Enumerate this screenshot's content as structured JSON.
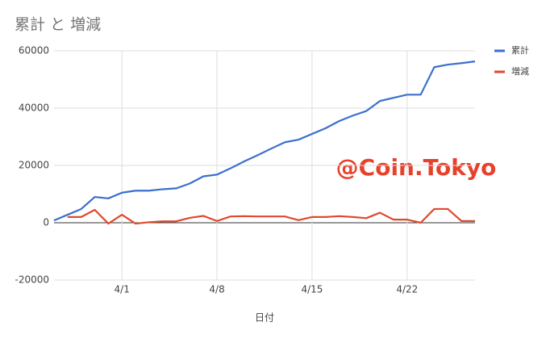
{
  "chart_data": {
    "type": "line",
    "title": "累計 と 増減",
    "x_label": "日付",
    "annotation": "@Coin.Tokyo",
    "categories": [
      null,
      null,
      null,
      null,
      null,
      "4/1",
      null,
      null,
      null,
      null,
      null,
      null,
      "4/8",
      null,
      null,
      null,
      null,
      null,
      null,
      "4/15",
      null,
      null,
      null,
      null,
      null,
      null,
      "4/22",
      null,
      null,
      null,
      null,
      null
    ],
    "series": [
      {
        "name": "累計",
        "color": "#3b6fce",
        "values": [
          800,
          2800,
          4800,
          9000,
          8500,
          10500,
          11200,
          11200,
          11700,
          12000,
          13700,
          16200,
          16800,
          19000,
          21400,
          23600,
          25900,
          28100,
          29000,
          31000,
          33000,
          35500,
          37400,
          39000,
          42500,
          43600,
          44700,
          44700,
          54300,
          55200,
          55700,
          56300
        ]
      },
      {
        "name": "増減",
        "color": "#e0492e",
        "values": [
          null,
          2000,
          2000,
          4500,
          -300,
          2800,
          -300,
          200,
          500,
          500,
          1700,
          2400,
          600,
          2200,
          2300,
          2200,
          2200,
          2200,
          900,
          2000,
          2000,
          2300,
          2000,
          1600,
          3500,
          1100,
          1100,
          0,
          4800,
          4800,
          600,
          600
        ]
      }
    ],
    "ylim": [
      -20000,
      60000
    ],
    "yticks": [
      -20000,
      0,
      20000,
      40000,
      60000
    ],
    "grid": true,
    "legend": "right"
  }
}
